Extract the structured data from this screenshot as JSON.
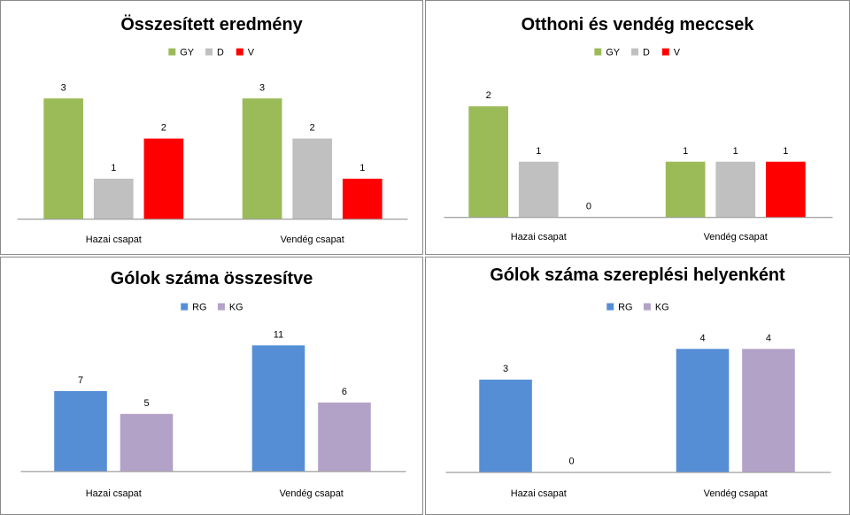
{
  "chart_data": [
    {
      "type": "bar",
      "title": "Összesített eredmény",
      "categories": [
        "Hazai csapat",
        "Vendég csapat"
      ],
      "series": [
        {
          "name": "GY",
          "values": [
            3,
            3
          ],
          "color": "#9bbb59"
        },
        {
          "name": "D",
          "values": [
            1,
            2
          ],
          "color": "#c0c0c0"
        },
        {
          "name": "V",
          "values": [
            2,
            1
          ],
          "color": "#ff0000"
        }
      ],
      "ylim": [
        0,
        3
      ],
      "legend": "top",
      "grid": false
    },
    {
      "type": "bar",
      "title": "Otthoni és vendég meccsek",
      "categories": [
        "Hazai csapat",
        "Vendég csapat"
      ],
      "series": [
        {
          "name": "GY",
          "values": [
            2,
            1
          ],
          "color": "#9bbb59"
        },
        {
          "name": "D",
          "values": [
            1,
            1
          ],
          "color": "#c0c0c0"
        },
        {
          "name": "V",
          "values": [
            0,
            1
          ],
          "color": "#ff0000"
        }
      ],
      "ylim": [
        0,
        2
      ],
      "legend": "top",
      "grid": false
    },
    {
      "type": "bar",
      "title": "Gólok száma összesítve",
      "categories": [
        "Hazai csapat",
        "Vendég csapat"
      ],
      "series": [
        {
          "name": "RG",
          "values": [
            7,
            11
          ],
          "color": "#558ed5"
        },
        {
          "name": "KG",
          "values": [
            5,
            6
          ],
          "color": "#b3a2c7"
        }
      ],
      "ylim": [
        0,
        11
      ],
      "legend": "top",
      "grid": false
    },
    {
      "type": "bar",
      "title": "Gólok száma szereplési helyenként",
      "categories": [
        "Hazai csapat",
        "Vendég csapat"
      ],
      "series": [
        {
          "name": "RG",
          "values": [
            3,
            4
          ],
          "color": "#558ed5"
        },
        {
          "name": "KG",
          "values": [
            0,
            4
          ],
          "color": "#b3a2c7"
        }
      ],
      "ylim": [
        0,
        4
      ],
      "legend": "top",
      "grid": false
    }
  ]
}
